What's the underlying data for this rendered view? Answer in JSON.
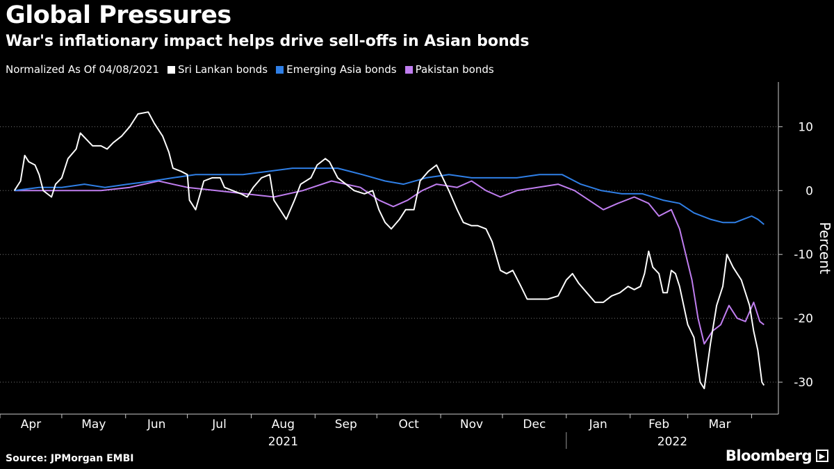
{
  "title": "Global Pressures",
  "subtitle": "War's inflationary impact helps drive sell-offs in Asian bonds",
  "legend_note": "Normalized As Of 04/08/2021",
  "source": "Source: JPMorgan EMBI",
  "brand": "Bloomberg",
  "chart_data": {
    "type": "line",
    "ylabel": "Percent",
    "ylim": [
      -35,
      17
    ],
    "yticks": [
      10,
      0,
      -10,
      -20,
      -30
    ],
    "x_range": [
      "2021-04-08",
      "2022-03-31"
    ],
    "month_ticks": [
      "Apr",
      "May",
      "Jun",
      "Jul",
      "Aug",
      "Sep",
      "Oct",
      "Nov",
      "Dec",
      "Jan",
      "Feb",
      "Mar"
    ],
    "year_labels": [
      "2021",
      "2022"
    ],
    "grid": true,
    "legend_position": "top-left",
    "series": [
      {
        "name": "Sri Lankan bonds",
        "color": "#ffffff",
        "points": [
          [
            "2021-04-08",
            0
          ],
          [
            "2021-04-11",
            1.5
          ],
          [
            "2021-04-13",
            5.5
          ],
          [
            "2021-04-15",
            4.5
          ],
          [
            "2021-04-18",
            4.0
          ],
          [
            "2021-04-20",
            2.5
          ],
          [
            "2021-04-22",
            0
          ],
          [
            "2021-04-26",
            -1.0
          ],
          [
            "2021-04-28",
            1.0
          ],
          [
            "2021-05-01",
            2.0
          ],
          [
            "2021-05-04",
            5.0
          ],
          [
            "2021-05-08",
            6.5
          ],
          [
            "2021-05-10",
            9.0
          ],
          [
            "2021-05-13",
            8.0
          ],
          [
            "2021-05-16",
            7.0
          ],
          [
            "2021-05-20",
            7.0
          ],
          [
            "2021-05-23",
            6.5
          ],
          [
            "2021-05-26",
            7.5
          ],
          [
            "2021-05-30",
            8.5
          ],
          [
            "2021-06-03",
            10.0
          ],
          [
            "2021-06-07",
            12.0
          ],
          [
            "2021-06-12",
            12.3
          ],
          [
            "2021-06-15",
            10.5
          ],
          [
            "2021-06-19",
            8.5
          ],
          [
            "2021-06-22",
            6.0
          ],
          [
            "2021-06-24",
            3.5
          ],
          [
            "2021-06-28",
            3.0
          ],
          [
            "2021-07-01",
            2.5
          ],
          [
            "2021-07-02",
            -1.5
          ],
          [
            "2021-07-05",
            -3.0
          ],
          [
            "2021-07-09",
            1.5
          ],
          [
            "2021-07-13",
            2.0
          ],
          [
            "2021-07-17",
            2.0
          ],
          [
            "2021-07-19",
            0.5
          ],
          [
            "2021-07-23",
            0
          ],
          [
            "2021-07-27",
            -0.5
          ],
          [
            "2021-07-30",
            -1.0
          ],
          [
            "2021-08-02",
            0.5
          ],
          [
            "2021-08-06",
            2.0
          ],
          [
            "2021-08-10",
            2.5
          ],
          [
            "2021-08-12",
            -1.5
          ],
          [
            "2021-08-15",
            -3.0
          ],
          [
            "2021-08-18",
            -4.5
          ],
          [
            "2021-08-22",
            -1.5
          ],
          [
            "2021-08-25",
            1.0
          ],
          [
            "2021-08-30",
            2.0
          ],
          [
            "2021-09-02",
            4.0
          ],
          [
            "2021-09-06",
            5.0
          ],
          [
            "2021-09-08",
            4.5
          ],
          [
            "2021-09-12",
            2.0
          ],
          [
            "2021-09-16",
            1.0
          ],
          [
            "2021-09-20",
            0
          ],
          [
            "2021-09-25",
            -0.5
          ],
          [
            "2021-09-29",
            0
          ],
          [
            "2021-10-02",
            -3.0
          ],
          [
            "2021-10-05",
            -5.0
          ],
          [
            "2021-10-08",
            -6.0
          ],
          [
            "2021-10-12",
            -4.5
          ],
          [
            "2021-10-15",
            -3.0
          ],
          [
            "2021-10-19",
            -3.0
          ],
          [
            "2021-10-22",
            1.5
          ],
          [
            "2021-10-26",
            3.0
          ],
          [
            "2021-10-30",
            4.0
          ],
          [
            "2021-11-02",
            2.0
          ],
          [
            "2021-11-05",
            0
          ],
          [
            "2021-11-09",
            -3.0
          ],
          [
            "2021-11-12",
            -5.0
          ],
          [
            "2021-11-16",
            -5.5
          ],
          [
            "2021-11-19",
            -5.5
          ],
          [
            "2021-11-23",
            -6.0
          ],
          [
            "2021-11-26",
            -8.0
          ],
          [
            "2021-11-30",
            -12.5
          ],
          [
            "2021-12-03",
            -13.0
          ],
          [
            "2021-12-06",
            -12.5
          ],
          [
            "2021-12-10",
            -15.0
          ],
          [
            "2021-12-13",
            -17.0
          ],
          [
            "2021-12-18",
            -17.0
          ],
          [
            "2021-12-23",
            -17.0
          ],
          [
            "2021-12-28",
            -16.5
          ],
          [
            "2022-01-01",
            -14.0
          ],
          [
            "2022-01-04",
            -13.0
          ],
          [
            "2022-01-07",
            -14.5
          ],
          [
            "2022-01-11",
            -16.0
          ],
          [
            "2022-01-15",
            -17.5
          ],
          [
            "2022-01-19",
            -17.5
          ],
          [
            "2022-01-23",
            -16.5
          ],
          [
            "2022-01-27",
            -16.0
          ],
          [
            "2022-01-31",
            -15.0
          ],
          [
            "2022-02-03",
            -15.5
          ],
          [
            "2022-02-06",
            -15.0
          ],
          [
            "2022-02-08",
            -13.0
          ],
          [
            "2022-02-10",
            -9.5
          ],
          [
            "2022-02-12",
            -12.0
          ],
          [
            "2022-02-15",
            -13.0
          ],
          [
            "2022-02-17",
            -16.0
          ],
          [
            "2022-02-19",
            -16.0
          ],
          [
            "2022-02-21",
            -12.5
          ],
          [
            "2022-02-23",
            -13.0
          ],
          [
            "2022-02-25",
            -15.0
          ],
          [
            "2022-02-27",
            -18.0
          ],
          [
            "2022-03-01",
            -21.0
          ],
          [
            "2022-03-04",
            -23.0
          ],
          [
            "2022-03-07",
            -30.0
          ],
          [
            "2022-03-09",
            -31.0
          ],
          [
            "2022-03-12",
            -24.0
          ],
          [
            "2022-03-15",
            -18.0
          ],
          [
            "2022-03-18",
            -15.0
          ],
          [
            "2022-03-20",
            -10.0
          ],
          [
            "2022-03-23",
            -12.0
          ],
          [
            "2022-03-25",
            -13.0
          ],
          [
            "2022-03-27",
            -14.0
          ],
          [
            "2022-03-29",
            -16.0
          ],
          [
            "2022-03-31",
            -18.0
          ],
          [
            "2022-04-02",
            -22.0
          ],
          [
            "2022-04-04",
            -25.0
          ],
          [
            "2022-04-06",
            -30.0
          ],
          [
            "2022-04-07",
            -30.5
          ]
        ]
      },
      {
        "name": "Emerging Asia bonds",
        "color": "#2f7fe6",
        "points": [
          [
            "2021-04-08",
            0
          ],
          [
            "2021-04-20",
            0.5
          ],
          [
            "2021-05-01",
            0.5
          ],
          [
            "2021-05-12",
            1.0
          ],
          [
            "2021-05-22",
            0.5
          ],
          [
            "2021-06-02",
            1.0
          ],
          [
            "2021-06-14",
            1.5
          ],
          [
            "2021-06-24",
            2.0
          ],
          [
            "2021-07-05",
            2.5
          ],
          [
            "2021-07-16",
            2.5
          ],
          [
            "2021-07-28",
            2.5
          ],
          [
            "2021-08-09",
            3.0
          ],
          [
            "2021-08-21",
            3.5
          ],
          [
            "2021-09-01",
            3.5
          ],
          [
            "2021-09-12",
            3.5
          ],
          [
            "2021-09-24",
            2.5
          ],
          [
            "2021-10-05",
            1.5
          ],
          [
            "2021-10-14",
            1.0
          ],
          [
            "2021-10-25",
            2.0
          ],
          [
            "2021-11-05",
            2.5
          ],
          [
            "2021-11-16",
            2.0
          ],
          [
            "2021-11-27",
            2.0
          ],
          [
            "2021-12-08",
            2.0
          ],
          [
            "2021-12-19",
            2.5
          ],
          [
            "2021-12-30",
            2.5
          ],
          [
            "2022-01-08",
            1.0
          ],
          [
            "2022-01-18",
            0
          ],
          [
            "2022-01-28",
            -0.5
          ],
          [
            "2022-02-07",
            -0.5
          ],
          [
            "2022-02-17",
            -1.5
          ],
          [
            "2022-02-25",
            -2.0
          ],
          [
            "2022-03-04",
            -3.5
          ],
          [
            "2022-03-12",
            -4.5
          ],
          [
            "2022-03-18",
            -5.0
          ],
          [
            "2022-03-24",
            -5.0
          ],
          [
            "2022-03-28",
            -4.5
          ],
          [
            "2022-04-01",
            -4.0
          ],
          [
            "2022-04-04",
            -4.5
          ],
          [
            "2022-04-07",
            -5.3
          ]
        ]
      },
      {
        "name": "Pakistan bonds",
        "color": "#c07ef0",
        "points": [
          [
            "2021-04-08",
            0
          ],
          [
            "2021-04-22",
            0
          ],
          [
            "2021-05-06",
            0
          ],
          [
            "2021-05-20",
            0
          ],
          [
            "2021-06-03",
            0.5
          ],
          [
            "2021-06-17",
            1.5
          ],
          [
            "2021-07-01",
            0.5
          ],
          [
            "2021-07-15",
            0
          ],
          [
            "2021-07-29",
            -0.5
          ],
          [
            "2021-08-12",
            -1.0
          ],
          [
            "2021-08-26",
            0
          ],
          [
            "2021-09-09",
            1.5
          ],
          [
            "2021-09-23",
            0.5
          ],
          [
            "2021-10-02",
            -1.5
          ],
          [
            "2021-10-09",
            -2.5
          ],
          [
            "2021-10-16",
            -1.5
          ],
          [
            "2021-10-23",
            0
          ],
          [
            "2021-10-30",
            1.0
          ],
          [
            "2021-11-09",
            0.5
          ],
          [
            "2021-11-16",
            1.5
          ],
          [
            "2021-11-23",
            0
          ],
          [
            "2021-11-30",
            -1.0
          ],
          [
            "2021-12-08",
            0
          ],
          [
            "2021-12-18",
            0.5
          ],
          [
            "2021-12-28",
            1.0
          ],
          [
            "2022-01-05",
            0
          ],
          [
            "2022-01-12",
            -1.5
          ],
          [
            "2022-01-19",
            -3.0
          ],
          [
            "2022-01-26",
            -2.0
          ],
          [
            "2022-02-03",
            -1.0
          ],
          [
            "2022-02-10",
            -2.0
          ],
          [
            "2022-02-15",
            -4.0
          ],
          [
            "2022-02-21",
            -3.0
          ],
          [
            "2022-02-25",
            -6.0
          ],
          [
            "2022-02-28",
            -10.0
          ],
          [
            "2022-03-03",
            -14.0
          ],
          [
            "2022-03-06",
            -20.0
          ],
          [
            "2022-03-09",
            -24.0
          ],
          [
            "2022-03-13",
            -22.0
          ],
          [
            "2022-03-17",
            -21.0
          ],
          [
            "2022-03-21",
            -18.0
          ],
          [
            "2022-03-25",
            -20.0
          ],
          [
            "2022-03-29",
            -20.5
          ],
          [
            "2022-04-02",
            -17.5
          ],
          [
            "2022-04-05",
            -20.5
          ],
          [
            "2022-04-07",
            -21.0
          ]
        ]
      }
    ]
  }
}
